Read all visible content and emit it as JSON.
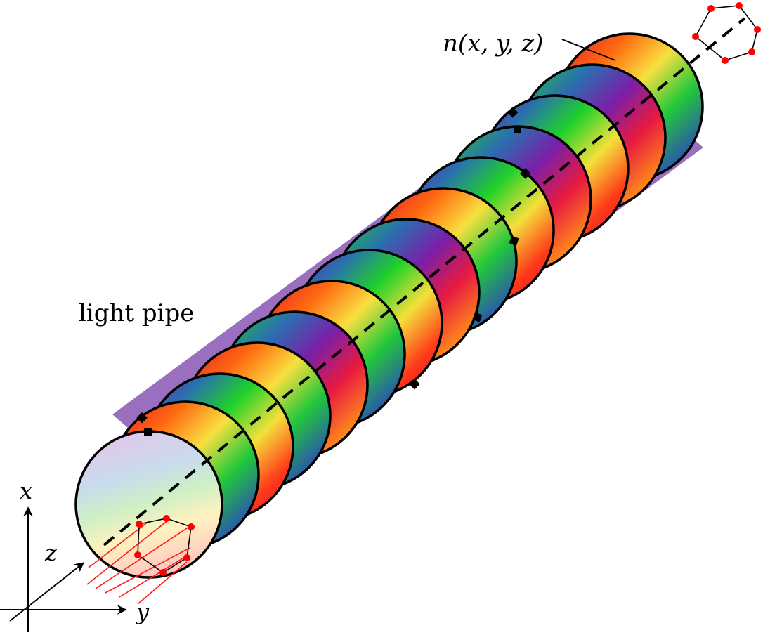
{
  "labels": {
    "light_pipe": "light pipe",
    "refractive_index": "n(x, y, z)",
    "axis_x": "x",
    "axis_y": "y",
    "axis_z": "z"
  },
  "colors": {
    "outline": "#000000",
    "marker": "#ff0000",
    "axis": "#000000"
  },
  "icons": {
    "axis_arrow": "arrowhead",
    "ray_point": "red-dot"
  }
}
